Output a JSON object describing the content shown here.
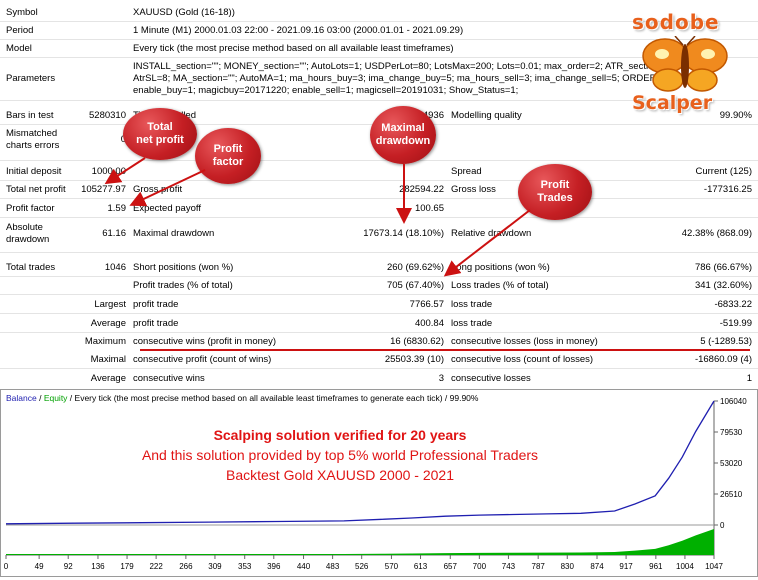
{
  "report": {
    "rows": {
      "symbol": {
        "label": "Symbol",
        "value": "XAUUSD (Gold (16-18))"
      },
      "period": {
        "label": "Period",
        "value": "1 Minute (M1) 2000.01.03 22:00 - 2021.09.16 03:00 (2000.01.01 - 2021.09.29)"
      },
      "model": {
        "label": "Model",
        "value": "Every tick (the most precise method based on all available least timeframes)"
      },
      "parameters": {
        "label": "Parameters",
        "value": "INSTALL_section=\"\"; MONEY_section=\"\"; AutoLots=1; USDPerLot=80; LotsMax=200; Lots=0.01; max_order=2; ATR_section=\"\"; AtrTP=5; AtrSL=8; MA_section=\"\"; AutoMA=1; ma_hours_buy=3; ima_change_buy=5; ma_hours_sell=3; ima_change_sell=5; ORDER_section=\"\"; enable_buy=1; magicbuy=20171220; enable_sell=1; magicsell=20191031; Show_Status=1;"
      },
      "bars": {
        "label": "Bars in test",
        "value": "5280310",
        "l2": "Ticks modelled",
        "v2": "185394936",
        "l3": "Modelling quality",
        "v3": "99.90%"
      },
      "mismatch": {
        "label": "Mismatched charts errors",
        "value": "0"
      },
      "deposit": {
        "label": "Initial deposit",
        "value": "1000.00",
        "l3": "Spread",
        "v3": "Current (125)"
      },
      "net": {
        "label": "Total net profit",
        "value": "105277.97",
        "l2": "Gross profit",
        "v2": "282594.22",
        "l3": "Gross loss",
        "v3": "-177316.25"
      },
      "pf": {
        "label": "Profit factor",
        "value": "1.59",
        "l2": "Expected payoff",
        "v2": "100.65"
      },
      "abs": {
        "label": "Absolute drawdown",
        "value": "61.16",
        "l2": "Maximal drawdown",
        "v2": "17673.14 (18.10%)",
        "l3": "Relative drawdown",
        "v3": "42.38% (868.09)"
      },
      "trades": {
        "label": "Total trades",
        "value": "1046",
        "l2": "Short positions (won %)",
        "v2": "260 (69.62%)",
        "l3": "Long positions (won %)",
        "v3": "786 (66.67%)"
      },
      "ptrades": {
        "l2": "Profit trades (% of total)",
        "v2": "705 (67.40%)",
        "l3": "Loss trades (% of total)",
        "v3": "341 (32.60%)"
      },
      "largest": {
        "label": "Largest",
        "l2": "profit trade",
        "v2": "7766.57",
        "l3": "loss trade",
        "v3": "-6833.22"
      },
      "average": {
        "label": "Average",
        "l2": "profit trade",
        "v2": "400.84",
        "l3": "loss trade",
        "v3": "-519.99"
      },
      "maximum": {
        "label": "Maximum",
        "l2": "consecutive wins (profit in money)",
        "v2": "16 (6830.62)",
        "l3": "consecutive losses (loss in money)",
        "v3": "5 (-1289.53)"
      },
      "maximal": {
        "label": "Maximal",
        "l2": "consecutive profit (count of wins)",
        "v2": "25503.39 (10)",
        "l3": "consecutive loss (count of losses)",
        "v3": "-16860.09 (4)"
      },
      "average2": {
        "label": "Average",
        "l2": "consecutive wins",
        "v2": "3",
        "l3": "consecutive losses",
        "v3": "1"
      }
    }
  },
  "callouts": {
    "total_net_profit": "Total\nnet profit",
    "profit_factor": "Profit\nfactor",
    "maximal_drawdown": "Maximal\ndrawdown",
    "profit_trades": "Profit\nTrades"
  },
  "logo": {
    "top": "sodobe",
    "bottom": "Scalper"
  },
  "chart_legend": {
    "balance": "Balance",
    "sep": " / ",
    "equity": "Equity",
    "rest": " / Every tick (the most precise method based on all available least timeframes to generate each tick) / 99.90%"
  },
  "overlay": {
    "line1": "Scalping solution verified for 20 years",
    "line2": "And this solution provided by top 5% world Professional Traders",
    "line3": "Backtest Gold XAUUSD 2000 - 2021"
  },
  "colors": {
    "balance": "#1f1fb0",
    "equity": "#00a000",
    "volume": "#00b000",
    "callout": "#c51f24",
    "overlay_text": "#e01414"
  },
  "chart_data": {
    "type": "line",
    "x_ticks": [
      "0",
      "49",
      "92",
      "136",
      "179",
      "222",
      "266",
      "309",
      "353",
      "396",
      "440",
      "483",
      "526",
      "570",
      "613",
      "657",
      "700",
      "743",
      "787",
      "830",
      "874",
      "917",
      "961",
      "1004",
      "1047"
    ],
    "y_ticks": [
      "106040",
      "79530",
      "53020",
      "26510",
      "0"
    ],
    "ylim": [
      0,
      106040
    ],
    "xlim": [
      0,
      1047
    ],
    "series": [
      {
        "name": "Balance",
        "x": [
          0,
          100,
          200,
          300,
          400,
          500,
          560,
          600,
          650,
          700,
          750,
          800,
          850,
          900,
          930,
          960,
          980,
          1000,
          1020,
          1047
        ],
        "y": [
          1000,
          1500,
          2000,
          2500,
          3000,
          3500,
          5000,
          6000,
          7500,
          8500,
          9000,
          9500,
          10000,
          12000,
          18000,
          25000,
          40000,
          58000,
          80000,
          106040
        ]
      }
    ]
  }
}
